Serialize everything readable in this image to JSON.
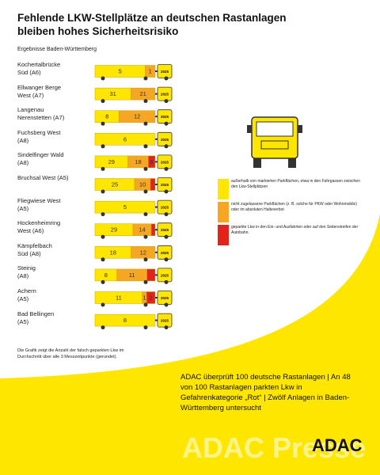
{
  "chart_data": {
    "type": "bar",
    "orientation": "horizontal",
    "stacking": "percent",
    "title": "Fehlende LKW-Stellplätze an deutschen Rastanlagen\nbleiben hohes Sicherheitsrisiko",
    "subtitle": "Ergebnisse Baden-Württemberg",
    "categories": [
      "Kochertalbrücke\nSüd (A6)",
      "Ellwanger Berge\nWest (A7)",
      "Langenau\nNerenstetten (A7)",
      "Fuchsberg West\n(A8)",
      "Sindelfinger Wald\n(A8)",
      "Bruchsal West (A5)",
      "Fliegwiese West\n(A5)",
      "Hockenheimring\nWest (A6)",
      "Kämpfelbach\nSüd (A8)",
      "Steinig\n(A8)",
      "Achern\n(A5)",
      "Bad Bellingen\n(A5)"
    ],
    "series": [
      {
        "name": "außerhalb von markierten Parkflächen, etwa in den Fahrgassen zwischen den Lkw-Stellplätzen",
        "color": "#ffe600",
        "values": [
          5,
          31,
          8,
          6,
          29,
          25,
          5,
          29,
          18,
          8,
          11,
          8
        ]
      },
      {
        "name": "nicht zugelassene Parkflächen (z. B. solche für PKW oder Wohnmobile) oder im absoluten Halteverbot",
        "color": "#f5a623",
        "values": [
          1,
          21,
          12,
          null,
          18,
          10,
          null,
          14,
          12,
          11,
          1,
          null
        ]
      },
      {
        "name": "geparkte Lkw in den Ein- und Ausfahrten oder auf den Seitenstreifen der Autobahn.",
        "color": "#e2231a",
        "values": [
          null,
          null,
          null,
          null,
          6,
          3,
          null,
          3,
          null,
          3,
          2,
          null
        ],
        "value_labels": [
          null,
          null,
          null,
          null,
          "6",
          null,
          null,
          null,
          null,
          null,
          "2",
          null
        ]
      }
    ],
    "cab_label": "2025",
    "footnote": "Die Grafik zeigt die Anzahl der falsch geparkten Lkw im Durchschnitt über alle 3 Messzeitpunkte (gerundet).",
    "summary": "ADAC überprüft 100 deutsche Rastanlagen | An 48 von 100 Rastanlagen parkten Lkw in Gefahrenkategorie „Rot“ | Zwölf Anlagen in Baden-Württemberg untersucht",
    "logo": "ADAC",
    "watermark": "ADAC Presse"
  }
}
